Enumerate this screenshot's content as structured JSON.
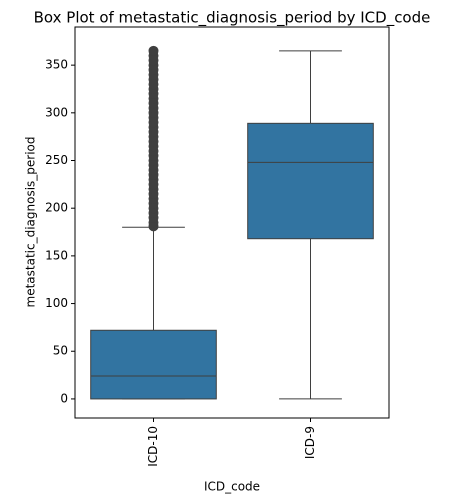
{
  "chart_data": {
    "type": "box",
    "title": "Box Plot of metastatic_diagnosis_period by ICD_code",
    "x_label": "ICD_code",
    "y_label": "metastatic_diagnosis_period",
    "categories": [
      "ICD-10",
      "ICD-9"
    ],
    "color": "#3274a1",
    "line_color": "#3f3f3f",
    "boxes": [
      {
        "min": 0,
        "q1": 0,
        "median": 24,
        "q3": 72,
        "max": 180,
        "outliers": [
          181,
          185,
          190,
          195,
          200,
          205,
          210,
          215,
          220,
          225,
          230,
          235,
          240,
          245,
          250,
          255,
          260,
          265,
          270,
          275,
          280,
          285,
          290,
          295,
          300,
          305,
          310,
          315,
          320,
          325,
          330,
          335,
          340,
          345,
          350,
          355,
          360,
          365
        ]
      },
      {
        "min": 0,
        "q1": 168,
        "median": 248,
        "q3": 289,
        "max": 365,
        "outliers": []
      }
    ],
    "ylim": [
      -20,
      390
    ],
    "yticks": [
      0,
      50,
      100,
      150,
      200,
      250,
      300,
      350
    ]
  }
}
